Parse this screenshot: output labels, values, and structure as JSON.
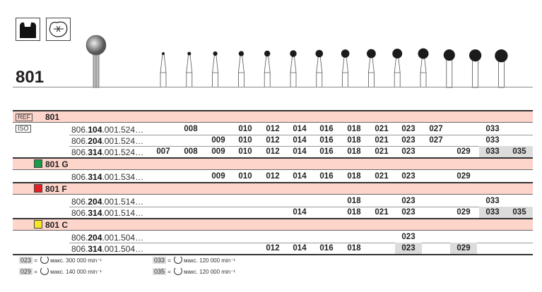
{
  "title": "801",
  "icons": [
    "cavity-preparation-icon",
    "occlusal-tooth-icon"
  ],
  "labels": {
    "ref": "REF",
    "iso": "ISO"
  },
  "columns": [
    "007",
    "008",
    "009",
    "010",
    "012",
    "014",
    "016",
    "018",
    "021",
    "023",
    "027",
    "029",
    "033",
    "035"
  ],
  "groups": [
    {
      "name": "801",
      "color": null,
      "rows": [
        {
          "prefix": "806.",
          "bold": "104",
          "suffix": ".001.524…",
          "cells": [
            "",
            "008",
            "",
            "010",
            "012",
            "014",
            "016",
            "018",
            "021",
            "023",
            "027",
            "",
            "033",
            ""
          ],
          "gray": []
        },
        {
          "prefix": "806.",
          "bold": "204",
          "suffix": ".001.524…",
          "cells": [
            "",
            "",
            "009",
            "010",
            "012",
            "014",
            "016",
            "018",
            "021",
            "023",
            "027",
            "",
            "033",
            ""
          ],
          "gray": []
        },
        {
          "prefix": "806.",
          "bold": "314",
          "suffix": ".001.524…",
          "cells": [
            "007",
            "008",
            "009",
            "010",
            "012",
            "014",
            "016",
            "018",
            "021",
            "023",
            "",
            "029",
            "033",
            "035"
          ],
          "gray": [
            "033",
            "035"
          ]
        }
      ]
    },
    {
      "name": "801 G",
      "color": "#1a9b48",
      "rows": [
        {
          "prefix": "806.",
          "bold": "314",
          "suffix": ".001.534…",
          "cells": [
            "",
            "",
            "009",
            "010",
            "012",
            "014",
            "016",
            "018",
            "021",
            "023",
            "",
            "029",
            "",
            ""
          ],
          "gray": []
        }
      ]
    },
    {
      "name": "801 F",
      "color": "#e31e24",
      "rows": [
        {
          "prefix": "806.",
          "bold": "204",
          "suffix": ".001.514…",
          "cells": [
            "",
            "",
            "",
            "",
            "",
            "",
            "",
            "018",
            "",
            "023",
            "",
            "",
            "033",
            ""
          ],
          "gray": []
        },
        {
          "prefix": "806.",
          "bold": "314",
          "suffix": ".001.514…",
          "cells": [
            "",
            "",
            "",
            "",
            "",
            "014",
            "",
            "018",
            "021",
            "023",
            "",
            "029",
            "033",
            "035"
          ],
          "gray": [
            "033",
            "035"
          ]
        }
      ]
    },
    {
      "name": "801 C",
      "color": "#f5e626",
      "rows": [
        {
          "prefix": "806.",
          "bold": "204",
          "suffix": ".001.504…",
          "cells": [
            "",
            "",
            "",
            "",
            "",
            "",
            "",
            "",
            "",
            "023",
            "",
            "",
            "",
            ""
          ],
          "gray": []
        },
        {
          "prefix": "806.",
          "bold": "314",
          "suffix": ".001.504…",
          "cells": [
            "",
            "",
            "",
            "",
            "012",
            "014",
            "016",
            "018",
            "",
            "023",
            "",
            "029",
            "",
            ""
          ],
          "gray": [
            "023",
            "029"
          ]
        }
      ]
    }
  ],
  "legend": [
    {
      "num": "023",
      "eq": "=",
      "text": "макс. 300 000 min⁻¹"
    },
    {
      "num": "029",
      "eq": "=",
      "text": "макс. 140 000 min⁻¹"
    },
    {
      "num": "033",
      "eq": "=",
      "text": "макс. 120 000 min⁻¹"
    },
    {
      "num": "035",
      "eq": "=",
      "text": "макс. 120 000 min⁻¹"
    }
  ]
}
